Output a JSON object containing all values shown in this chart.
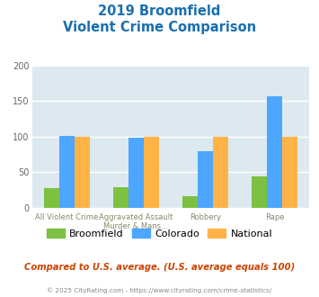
{
  "title_line1": "2019 Broomfield",
  "title_line2": "Violent Crime Comparison",
  "cat_labels_line1": [
    "All Violent Crime",
    "Aggravated Assault",
    "Robbery",
    "Rape"
  ],
  "cat_labels_line2": [
    "",
    "Murder & Mans...",
    "",
    ""
  ],
  "series": {
    "Broomfield": [
      28,
      29,
      16,
      44
    ],
    "Colorado": [
      101,
      99,
      79,
      157
    ],
    "National": [
      100,
      100,
      100,
      100
    ]
  },
  "colors": {
    "Broomfield": "#7dc142",
    "Colorado": "#4da6ff",
    "National": "#ffb347"
  },
  "ylim": [
    0,
    200
  ],
  "yticks": [
    0,
    50,
    100,
    150,
    200
  ],
  "title_color": "#1a6faf",
  "plot_bg_color": "#dce9f0",
  "footer_text": "Compared to U.S. average. (U.S. average equals 100)",
  "copyright_text": "© 2025 CityRating.com - https://www.cityrating.com/crime-statistics/",
  "footer_color": "#cc4400",
  "copyright_color": "#888888",
  "series_names": [
    "Broomfield",
    "Colorado",
    "National"
  ]
}
